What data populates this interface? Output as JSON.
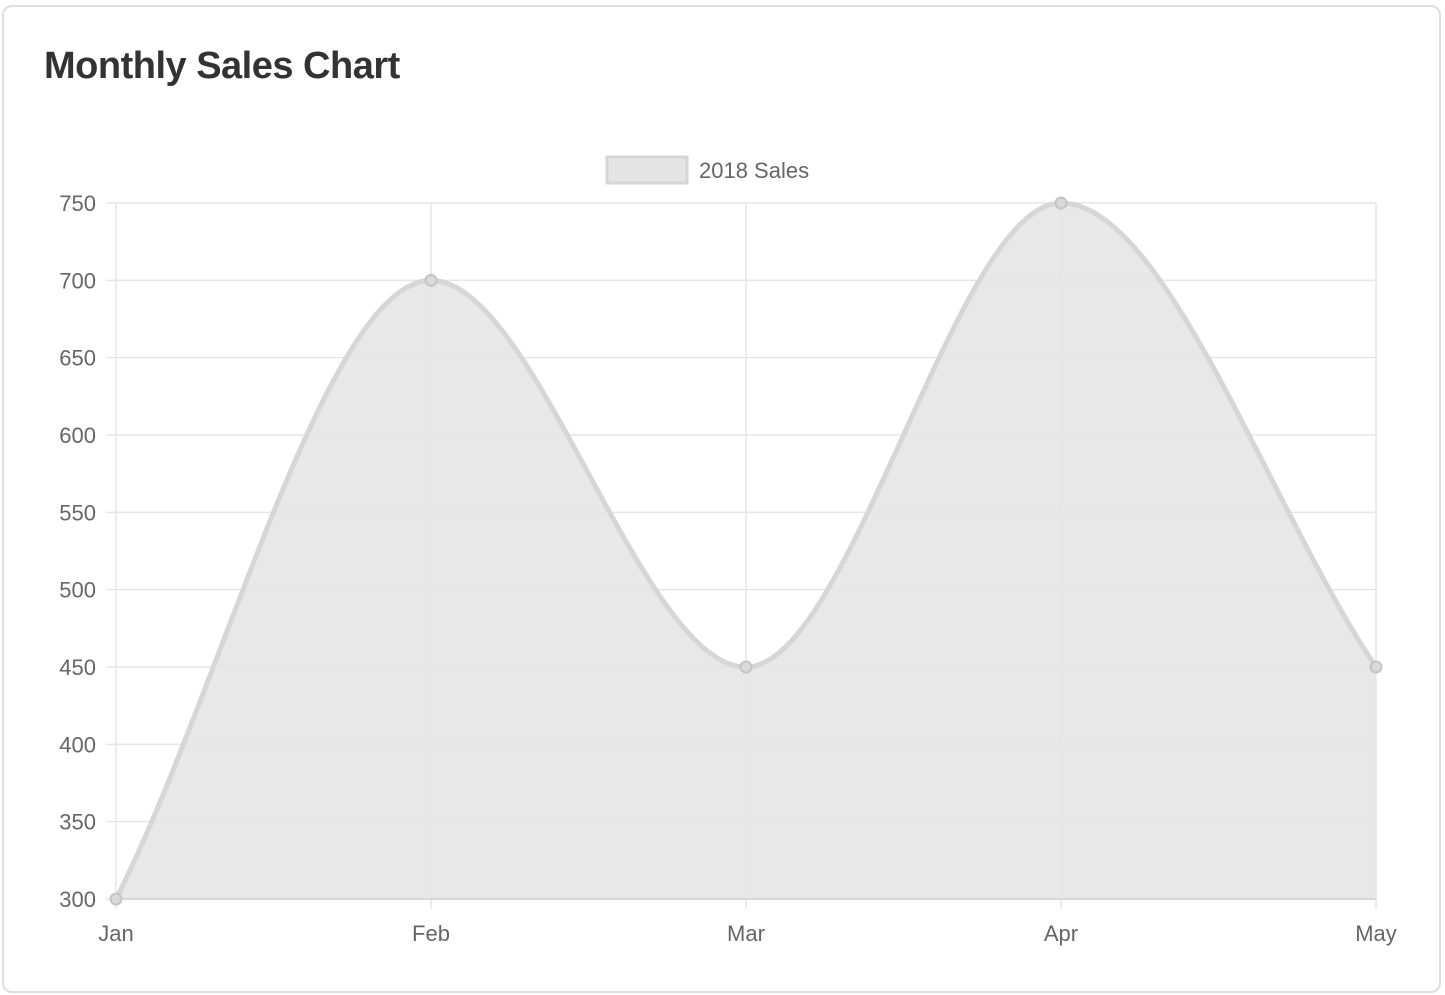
{
  "card": {
    "title": "Monthly Sales Chart"
  },
  "chart_data": {
    "type": "area",
    "categories": [
      "Jan",
      "Feb",
      "Mar",
      "Apr",
      "May"
    ],
    "series": [
      {
        "name": "2018 Sales",
        "values": [
          300,
          700,
          450,
          750,
          450
        ]
      }
    ],
    "ylim": [
      300,
      750
    ],
    "y_ticks": [
      300,
      350,
      400,
      450,
      500,
      550,
      600,
      650,
      700,
      750
    ],
    "grid": true,
    "legend_position": "top",
    "curve": "smooth",
    "colors": {
      "fill": "#e4e4e4",
      "line": "#d6d6d6",
      "point": "#c4c4c4",
      "grid": "#e6e6e6",
      "tick_text": "#666666"
    }
  }
}
